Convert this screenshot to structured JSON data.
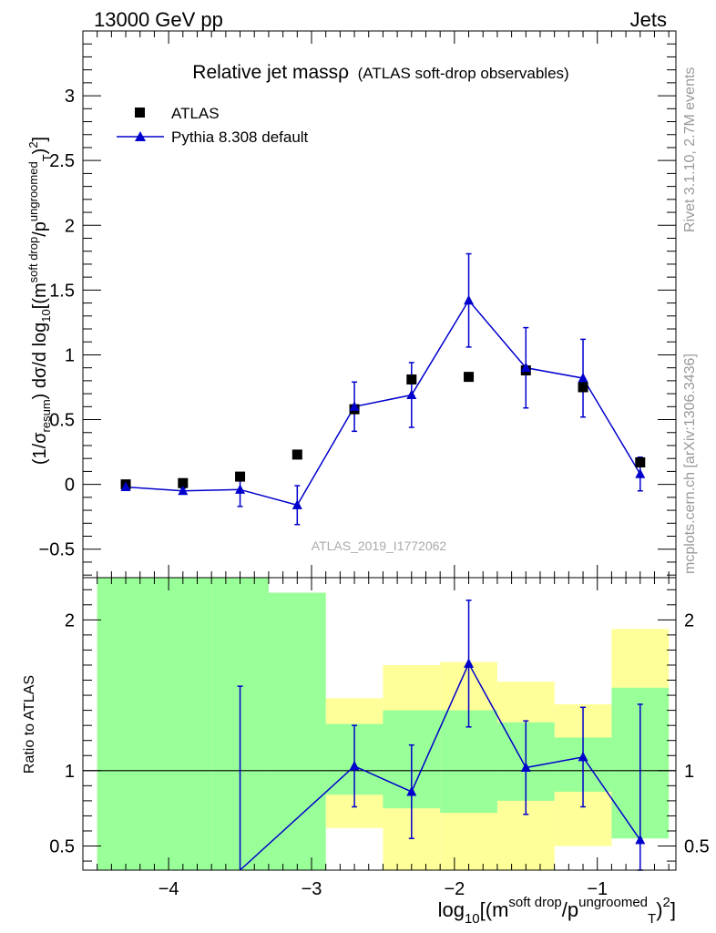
{
  "header": {
    "left": "13000 GeV pp",
    "right": "Jets"
  },
  "side_labels": {
    "rivet": "Rivet 3.1.10,  2.7M events",
    "mcplots": "mcplots.cern.ch [arXiv:1306.3436]"
  },
  "watermark": "ATLAS_2019_I1772062",
  "chart_data": [
    {
      "type": "line",
      "panel": "main",
      "title": "Relative jet massρ",
      "subtitle": "(ATLAS soft-drop observables)",
      "xlabel": "log10[(m^{soft drop}/p_T^{ungroomed})^2]",
      "ylabel": "(1/σ_resum) dσ/d log10[(m^{soft drop}/p_T^{ungroomed})^2]",
      "xlim": [
        -4.6,
        -0.45
      ],
      "ylim": [
        -0.72,
        3.5
      ],
      "yticks": [
        -0.5,
        0,
        0.5,
        1,
        1.5,
        2,
        2.5,
        3
      ],
      "ytick_labels": [
        "−0.5",
        "0",
        "0.5",
        "1",
        "1.5",
        "2",
        "2.5",
        "3"
      ],
      "legend_position": "top-left",
      "series": [
        {
          "name": "ATLAS",
          "marker": "square",
          "color": "#000000",
          "x": [
            -4.3,
            -3.9,
            -3.5,
            -3.1,
            -2.7,
            -2.3,
            -1.9,
            -1.5,
            -1.1,
            -0.7
          ],
          "y": [
            0.0,
            0.01,
            0.06,
            0.23,
            0.58,
            0.81,
            0.83,
            0.88,
            0.75,
            0.17
          ],
          "yerr": [
            0.01,
            0.01,
            0.01,
            0.01,
            0.02,
            0.03,
            0.02,
            0.02,
            0.03,
            0.04
          ]
        },
        {
          "name": "Pythia 8.308 default",
          "marker": "triangle",
          "color": "#0000cc",
          "x": [
            -4.3,
            -3.9,
            -3.5,
            -3.1,
            -2.7,
            -2.3,
            -1.9,
            -1.5,
            -1.1,
            -0.7
          ],
          "y": [
            -0.02,
            -0.05,
            -0.04,
            -0.16,
            0.6,
            0.69,
            1.42,
            0.9,
            0.82,
            0.08
          ],
          "yerr": [
            0.02,
            0.02,
            0.13,
            0.15,
            0.19,
            0.25,
            0.36,
            0.31,
            0.3,
            0.13
          ]
        }
      ]
    },
    {
      "type": "line",
      "panel": "ratio",
      "ylabel": "Ratio to ATLAS",
      "xlabel": "log10[(m^{soft drop}/p_T^{ungroomed})^2]",
      "xlim": [
        -4.6,
        -0.45
      ],
      "ylim": [
        0.34,
        2.28
      ],
      "xticks": [
        -4,
        -3,
        -2,
        -1
      ],
      "xtick_labels": [
        "−4",
        "−3",
        "−2",
        "−1"
      ],
      "yticks": [
        0.5,
        1,
        2
      ],
      "ytick_labels": [
        "0.5",
        "1",
        "2"
      ],
      "bands": {
        "bin_edges": [
          -4.5,
          -3.7,
          -3.3,
          -2.9,
          -2.5,
          -2.1,
          -1.7,
          -1.3,
          -0.9,
          -0.5
        ],
        "outer": {
          "color": "#ffff99",
          "low": [
            0.0,
            0.0,
            0.0,
            0.62,
            0.0,
            0.0,
            0.0,
            0.5,
            0.68
          ],
          "high": [
            2.6,
            2.6,
            2.18,
            1.48,
            1.7,
            1.72,
            1.59,
            1.44,
            1.94
          ]
        },
        "inner": {
          "color": "#99ff99",
          "low": [
            0.0,
            0.0,
            0.0,
            0.84,
            0.75,
            0.72,
            0.8,
            0.86,
            0.55
          ],
          "high": [
            2.6,
            2.6,
            2.18,
            1.31,
            1.4,
            1.4,
            1.32,
            1.22,
            1.55
          ]
        }
      },
      "series": [
        {
          "name": "Pythia 8.308 default",
          "marker": "triangle",
          "color": "#0000cc",
          "x": [
            -3.5,
            -2.7,
            -2.3,
            -1.9,
            -1.5,
            -1.1,
            -0.7
          ],
          "y": [
            0.0,
            1.03,
            0.86,
            1.71,
            1.02,
            1.09,
            0.54
          ],
          "yerr_low": [
            0.0,
            0.27,
            0.31,
            0.42,
            0.31,
            0.33,
            0.2
          ],
          "yerr_high": [
            1.56,
            0.27,
            0.31,
            0.42,
            0.31,
            0.33,
            0.9
          ]
        }
      ]
    }
  ]
}
